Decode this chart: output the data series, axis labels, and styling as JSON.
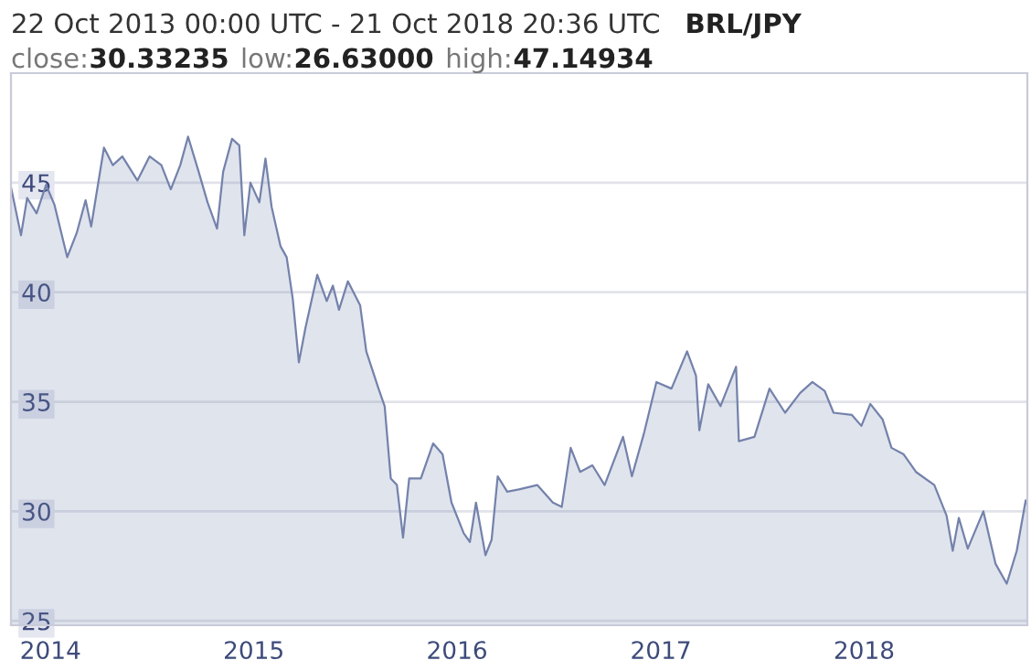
{
  "chart_data": {
    "type": "area",
    "title": "22 Oct 2013 00:00 UTC - 21 Oct 2018 20:36 UTC",
    "subtitle": "BRL/JPY",
    "annotations": [
      "close:30.33235",
      "low:26.63000",
      "high:47.14934"
    ],
    "x": [
      "2013-10-22",
      "2013-11-09",
      "2013-11-20",
      "2013-12-07",
      "2013-12-24",
      "2014-01-08",
      "2014-01-31",
      "2014-02-17",
      "2014-03-05",
      "2014-03-15",
      "2014-04-07",
      "2014-04-23",
      "2014-05-10",
      "2014-06-06",
      "2014-06-28",
      "2014-07-19",
      "2014-08-05",
      "2014-08-22",
      "2014-09-05",
      "2014-09-24",
      "2014-10-10",
      "2014-10-27",
      "2014-11-07",
      "2014-11-23",
      "2014-12-06",
      "2014-12-15",
      "2014-12-26",
      "2015-01-11",
      "2015-01-22",
      "2015-02-02",
      "2015-02-18",
      "2015-03-01",
      "2015-03-12",
      "2015-03-23",
      "2015-04-04",
      "2015-04-25",
      "2015-05-12",
      "2015-05-23",
      "2015-06-03",
      "2015-06-19",
      "2015-07-11",
      "2015-07-22",
      "2015-08-13",
      "2015-08-24",
      "2015-09-04",
      "2015-09-15",
      "2015-09-26",
      "2015-10-07",
      "2015-10-28",
      "2015-11-19",
      "2015-12-06",
      "2015-12-22",
      "2016-01-13",
      "2016-01-24",
      "2016-02-04",
      "2016-02-21",
      "2016-03-03",
      "2016-03-14",
      "2016-03-31",
      "2016-04-21",
      "2016-05-24",
      "2016-06-21",
      "2016-07-07",
      "2016-07-23",
      "2016-08-09",
      "2016-08-31",
      "2016-09-22",
      "2016-10-25",
      "2016-11-10",
      "2016-12-02",
      "2016-12-24",
      "2017-01-20",
      "2017-02-17",
      "2017-03-05",
      "2017-03-11",
      "2017-03-27",
      "2017-04-18",
      "2017-05-16",
      "2017-05-21",
      "2017-06-18",
      "2017-07-15",
      "2017-08-12",
      "2017-09-08",
      "2017-09-30",
      "2017-10-22",
      "2017-11-07",
      "2017-12-10",
      "2017-12-27",
      "2018-01-12",
      "2018-02-03",
      "2018-02-19",
      "2018-03-13",
      "2018-04-04",
      "2018-05-07",
      "2018-05-29",
      "2018-06-09",
      "2018-06-20",
      "2018-07-06",
      "2018-08-03",
      "2018-08-25",
      "2018-09-14",
      "2018-10-02",
      "2018-10-18",
      "2018-10-21"
    ],
    "series": [
      {
        "color": "#7482ab",
        "values": [
          44.8,
          42.6,
          44.3,
          43.6,
          44.9,
          44.0,
          41.6,
          42.7,
          44.2,
          43.0,
          46.6,
          45.8,
          46.2,
          45.1,
          46.2,
          45.8,
          44.7,
          45.8,
          47.1,
          45.5,
          44.1,
          42.9,
          45.5,
          47.0,
          46.7,
          42.6,
          45.0,
          44.1,
          46.1,
          43.9,
          42.1,
          41.6,
          39.7,
          36.8,
          38.4,
          40.8,
          39.6,
          40.3,
          39.2,
          40.5,
          39.4,
          37.3,
          35.6,
          34.8,
          31.5,
          31.2,
          28.8,
          31.5,
          31.5,
          33.1,
          32.6,
          30.4,
          29.0,
          28.6,
          30.4,
          28.0,
          28.7,
          31.6,
          30.9,
          31.0,
          31.2,
          30.4,
          30.2,
          32.9,
          31.8,
          32.1,
          31.2,
          33.4,
          31.6,
          33.6,
          35.9,
          35.6,
          37.3,
          36.2,
          33.7,
          35.8,
          34.8,
          36.6,
          33.2,
          33.4,
          35.6,
          34.5,
          35.4,
          35.9,
          35.5,
          34.5,
          34.4,
          33.9,
          34.9,
          34.2,
          32.9,
          32.6,
          31.8,
          31.2,
          29.8,
          28.2,
          29.7,
          28.3,
          30.0,
          27.6,
          26.7,
          28.2,
          30.5,
          30.3
        ]
      }
    ],
    "xlim": [
      "2013-10-22",
      "2018-10-21"
    ],
    "xticks": [
      {
        "value": "2014-01-01",
        "label": "2014"
      },
      {
        "value": "2015-01-01",
        "label": "2015"
      },
      {
        "value": "2016-01-01",
        "label": "2016"
      },
      {
        "value": "2017-01-01",
        "label": "2017"
      },
      {
        "value": "2018-01-01",
        "label": "2018"
      }
    ],
    "ylim": [
      24.8,
      50
    ],
    "yticks": [
      25,
      30,
      35,
      40,
      45
    ],
    "grid": "y"
  }
}
